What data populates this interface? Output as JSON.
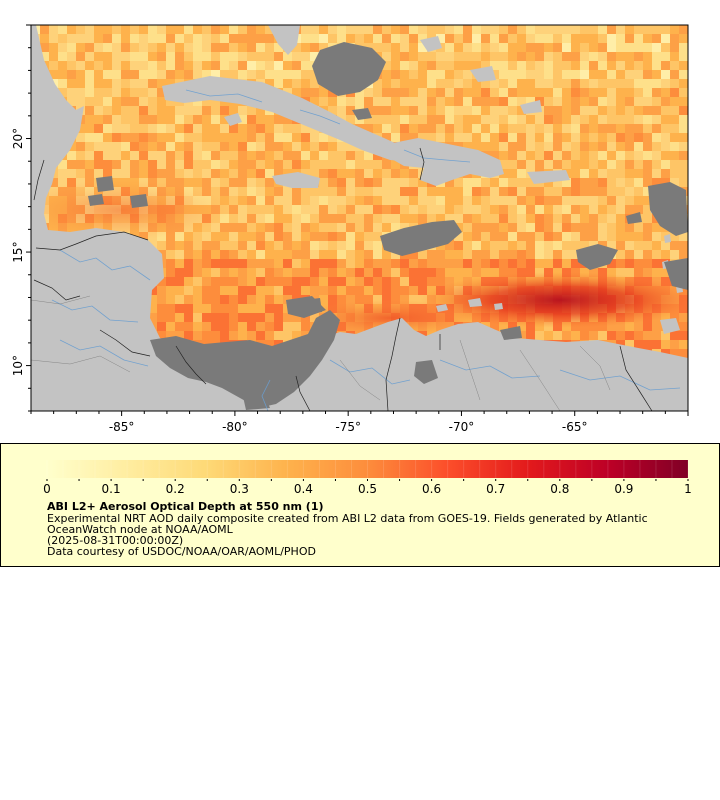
{
  "map": {
    "lat_ticks": [
      {
        "value": 10,
        "label": "10°"
      },
      {
        "value": 15,
        "label": "15°"
      },
      {
        "value": 20,
        "label": "20°"
      }
    ],
    "lon_ticks": [
      {
        "value": -85,
        "label": "-85°"
      },
      {
        "value": -80,
        "label": "-80°"
      },
      {
        "value": -75,
        "label": "-75°"
      },
      {
        "value": -70,
        "label": "-70°"
      },
      {
        "value": -65,
        "label": "-65°"
      }
    ],
    "lon_range": [
      -89.0,
      -60.0
    ],
    "lat_range": [
      8.0,
      25.0
    ],
    "colors": {
      "land": "#c3c3c3",
      "no_data": "#7a7a7a",
      "rivers": "#6a9ed0",
      "borders": "#222222",
      "frame": "#000000"
    }
  },
  "colorbar": {
    "min": 0,
    "max": 1,
    "tick_labels": [
      "0",
      "0.1",
      "0.2",
      "0.3",
      "0.4",
      "0.5",
      "0.6",
      "0.7",
      "0.8",
      "0.9",
      "1"
    ],
    "colors": [
      "#ffffcc",
      "#ffeda0",
      "#fed976",
      "#feb24c",
      "#fd8d3c",
      "#fc4e2a",
      "#e31a1c",
      "#bd0026",
      "#800026"
    ]
  },
  "legend": {
    "title": "ABI L2+ Aerosol Optical Depth at 550 nm (1)",
    "description_line1": "Experimental NRT AOD daily composite created from ABI L2 data from GOES-19. Fields generated by Atlantic",
    "description_line2": "OceanWatch node at NOAA/AOML",
    "date": "(2025-08-31T00:00:00Z)",
    "credit": "Data courtesy of USDOC/NOAA/OAR/AOML/PHOD"
  }
}
